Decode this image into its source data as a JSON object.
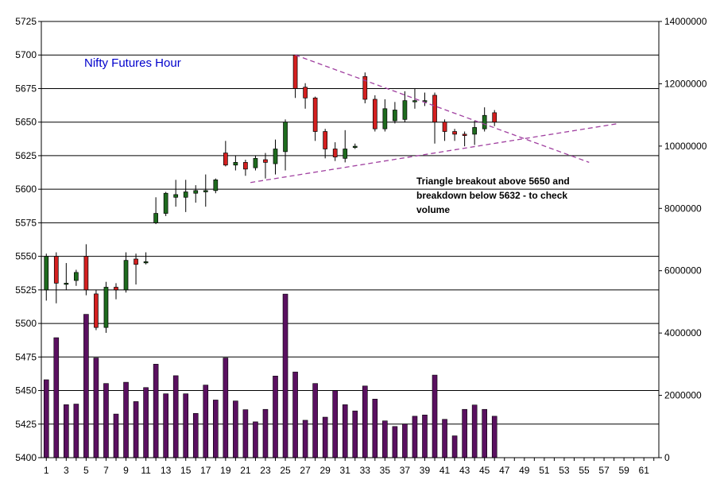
{
  "chart_data": {
    "type": "candlestick+bar",
    "title": "Nifty Futures Hour",
    "annotation": [
      "Triangle breakout above 5650 and",
      "breakdown below 5632 - to check",
      "volume"
    ],
    "price_axis": {
      "min": 5400,
      "max": 5725,
      "step": 25,
      "position": "left"
    },
    "volume_axis": {
      "min": 0,
      "max": 14000000,
      "step": 2000000,
      "position": "right"
    },
    "x_axis": {
      "min": 1,
      "max": 62,
      "tick_labels": [
        "1",
        "3",
        "5",
        "7",
        "9",
        "11",
        "13",
        "15",
        "17",
        "19",
        "21",
        "23",
        "25",
        "27",
        "29",
        "31",
        "33",
        "35",
        "37",
        "39",
        "41",
        "43",
        "45",
        "47",
        "49",
        "51",
        "53",
        "55",
        "57",
        "59",
        "61"
      ]
    },
    "grid": "horizontal",
    "colors": {
      "up": "#1e6b1e",
      "down": "#d42020",
      "volume": "#5a1060",
      "trendline": "#a040a0",
      "title": "#0000cc"
    },
    "candles": [
      {
        "x": 1,
        "o": 5525,
        "h": 5552,
        "l": 5517,
        "c": 5550
      },
      {
        "x": 2,
        "o": 5550,
        "h": 5553,
        "l": 5515,
        "c": 5530
      },
      {
        "x": 3,
        "o": 5530,
        "h": 5545,
        "l": 5525,
        "c": 5530
      },
      {
        "x": 4,
        "o": 5532,
        "h": 5540,
        "l": 5528,
        "c": 5538
      },
      {
        "x": 5,
        "o": 5550,
        "h": 5559,
        "l": 5521,
        "c": 5525
      },
      {
        "x": 6,
        "o": 5522,
        "h": 5525,
        "l": 5495,
        "c": 5497
      },
      {
        "x": 7,
        "o": 5497,
        "h": 5531,
        "l": 5493,
        "c": 5527
      },
      {
        "x": 8,
        "o": 5527,
        "h": 5530,
        "l": 5518,
        "c": 5525
      },
      {
        "x": 9,
        "o": 5525,
        "h": 5553,
        "l": 5523,
        "c": 5547
      },
      {
        "x": 10,
        "o": 5548,
        "h": 5552,
        "l": 5529,
        "c": 5544
      },
      {
        "x": 11,
        "o": 5546,
        "h": 5553,
        "l": 5544,
        "c": 5546
      },
      {
        "x": 12,
        "o": 5575,
        "h": 5594,
        "l": 5574,
        "c": 5582
      },
      {
        "x": 13,
        "o": 5582,
        "h": 5598,
        "l": 5580,
        "c": 5597
      },
      {
        "x": 14,
        "o": 5594,
        "h": 5607,
        "l": 5587,
        "c": 5596
      },
      {
        "x": 15,
        "o": 5594,
        "h": 5607,
        "l": 5583,
        "c": 5598
      },
      {
        "x": 16,
        "o": 5597,
        "h": 5603,
        "l": 5590,
        "c": 5599
      },
      {
        "x": 17,
        "o": 5598,
        "h": 5611,
        "l": 5587,
        "c": 5599
      },
      {
        "x": 18,
        "o": 5599,
        "h": 5608,
        "l": 5597,
        "c": 5607
      },
      {
        "x": 19,
        "o": 5627,
        "h": 5636,
        "l": 5617,
        "c": 5618
      },
      {
        "x": 20,
        "o": 5618,
        "h": 5625,
        "l": 5614,
        "c": 5620
      },
      {
        "x": 21,
        "o": 5620,
        "h": 5622,
        "l": 5610,
        "c": 5615
      },
      {
        "x": 22,
        "o": 5616,
        "h": 5625,
        "l": 5614,
        "c": 5623
      },
      {
        "x": 23,
        "o": 5622,
        "h": 5627,
        "l": 5608,
        "c": 5620
      },
      {
        "x": 24,
        "o": 5619,
        "h": 5637,
        "l": 5611,
        "c": 5630
      },
      {
        "x": 25,
        "o": 5628,
        "h": 5652,
        "l": 5614,
        "c": 5650
      },
      {
        "x": 26,
        "o": 5700,
        "h": 5700,
        "l": 5668,
        "c": 5675
      },
      {
        "x": 27,
        "o": 5676,
        "h": 5679,
        "l": 5660,
        "c": 5668
      },
      {
        "x": 28,
        "o": 5668,
        "h": 5669,
        "l": 5636,
        "c": 5643
      },
      {
        "x": 29,
        "o": 5643,
        "h": 5645,
        "l": 5623,
        "c": 5630
      },
      {
        "x": 30,
        "o": 5630,
        "h": 5635,
        "l": 5621,
        "c": 5624
      },
      {
        "x": 31,
        "o": 5623,
        "h": 5644,
        "l": 5620,
        "c": 5630
      },
      {
        "x": 32,
        "o": 5632,
        "h": 5634,
        "l": 5630,
        "c": 5632
      },
      {
        "x": 33,
        "o": 5684,
        "h": 5687,
        "l": 5664,
        "c": 5667
      },
      {
        "x": 34,
        "o": 5667,
        "h": 5670,
        "l": 5643,
        "c": 5645
      },
      {
        "x": 35,
        "o": 5645,
        "h": 5667,
        "l": 5643,
        "c": 5660
      },
      {
        "x": 36,
        "o": 5651,
        "h": 5665,
        "l": 5649,
        "c": 5659
      },
      {
        "x": 37,
        "o": 5652,
        "h": 5673,
        "l": 5650,
        "c": 5666
      },
      {
        "x": 38,
        "o": 5666,
        "h": 5675,
        "l": 5660,
        "c": 5666
      },
      {
        "x": 39,
        "o": 5666,
        "h": 5672,
        "l": 5662,
        "c": 5666
      },
      {
        "x": 40,
        "o": 5670,
        "h": 5672,
        "l": 5634,
        "c": 5650
      },
      {
        "x": 41,
        "o": 5650,
        "h": 5652,
        "l": 5636,
        "c": 5643
      },
      {
        "x": 42,
        "o": 5643,
        "h": 5645,
        "l": 5636,
        "c": 5641
      },
      {
        "x": 43,
        "o": 5641,
        "h": 5643,
        "l": 5632,
        "c": 5640
      },
      {
        "x": 44,
        "o": 5641,
        "h": 5651,
        "l": 5633,
        "c": 5646
      },
      {
        "x": 45,
        "o": 5645,
        "h": 5661,
        "l": 5643,
        "c": 5655
      },
      {
        "x": 46,
        "o": 5657,
        "h": 5659,
        "l": 5647,
        "c": 5650
      }
    ],
    "volume": [
      2500000,
      3850000,
      1700000,
      1720000,
      4600000,
      3200000,
      2380000,
      1400000,
      2420000,
      1800000,
      2250000,
      3000000,
      2050000,
      2630000,
      2050000,
      1420000,
      2330000,
      1850000,
      3200000,
      1820000,
      1540000,
      1150000,
      1550000,
      2620000,
      5250000,
      2750000,
      1200000,
      2380000,
      1300000,
      2150000,
      1700000,
      1500000,
      2300000,
      1880000,
      1180000,
      1000000,
      1080000,
      1330000,
      1370000,
      2650000,
      1230000,
      700000,
      1550000,
      1690000,
      1550000,
      1330000
    ],
    "trendlines": [
      {
        "x1": 26,
        "y1": 5700,
        "x2": 55.5,
        "y2": 5620
      },
      {
        "x1": 21.5,
        "y1": 5605,
        "x2": 58.5,
        "y2": 5649
      }
    ]
  }
}
